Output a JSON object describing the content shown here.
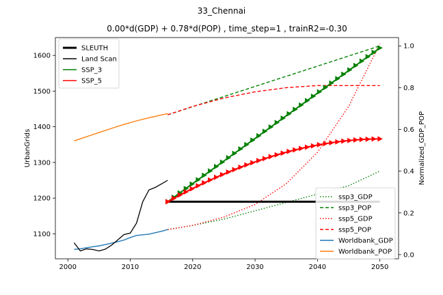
{
  "chart_data": {
    "type": "line",
    "suptitle": "33_Chennai",
    "title": "0.00*d(GDP) + 0.78*d(POP) , time_step=1 , trainR2=-0.30",
    "xlim": [
      1998,
      2053
    ],
    "x_ticks": [
      2000,
      2010,
      2020,
      2030,
      2040,
      2050
    ],
    "left_axis": {
      "label": "UrbanGrids",
      "ylim": [
        1030,
        1650
      ],
      "ticks": [
        1100,
        1200,
        1300,
        1400,
        1500,
        1600
      ]
    },
    "right_axis": {
      "label": "Normalized_GDP_POP",
      "ylim": [
        -0.02,
        1.04
      ],
      "ticks": [
        0.0,
        0.2,
        0.4,
        0.6,
        0.8,
        1.0
      ]
    },
    "left_legend": {
      "placement": "upper-left",
      "entries": [
        {
          "label": "SLEUTH",
          "color": "#000000",
          "style": "solid-thick"
        },
        {
          "label": "Land Scan",
          "color": "#000000",
          "style": "solid"
        },
        {
          "label": "SSP_3",
          "color": "#008000",
          "style": "solid"
        },
        {
          "label": "SSP_5",
          "color": "#ff0000",
          "style": "solid"
        }
      ]
    },
    "right_legend": {
      "placement": "lower-right",
      "entries": [
        {
          "label": "ssp3_GDP",
          "color": "#008000",
          "style": "dotted"
        },
        {
          "label": "ssp3_POP",
          "color": "#008000",
          "style": "dashed"
        },
        {
          "label": "ssp5_GDP",
          "color": "#ff0000",
          "style": "dotted"
        },
        {
          "label": "ssp5_POP",
          "color": "#ff0000",
          "style": "dashed"
        },
        {
          "label": "Worldbank_GDP",
          "color": "#1f77b4",
          "style": "solid"
        },
        {
          "label": "Worldbank_POP",
          "color": "#ff7f0e",
          "style": "solid"
        }
      ]
    },
    "series_left": [
      {
        "name": "SLEUTH",
        "color": "#000000",
        "width": 3,
        "x": [
          2016,
          2050
        ],
        "y": [
          1190,
          1190
        ]
      },
      {
        "name": "Land Scan",
        "color": "#000000",
        "width": 1.3,
        "x": [
          2001,
          2002,
          2003,
          2004,
          2005,
          2006,
          2007,
          2008,
          2009,
          2010,
          2011,
          2012,
          2013,
          2014,
          2015,
          2016
        ],
        "y": [
          1075,
          1052,
          1058,
          1056,
          1052,
          1057,
          1068,
          1083,
          1098,
          1102,
          1130,
          1190,
          1223,
          1230,
          1240,
          1250
        ]
      },
      {
        "name": "SSP_3",
        "color": "#008000",
        "width": 2,
        "marker": "triangle",
        "x_start": 2016,
        "x_end": 2050,
        "y_start": 1190,
        "y_end": 1621,
        "shape": "linear"
      },
      {
        "name": "SSP_5",
        "color": "#ff0000",
        "width": 2,
        "marker": "triangle",
        "x_start": 2016,
        "x_end": 2050,
        "y_start": 1190,
        "y_end": 1366,
        "shape": "concave"
      }
    ],
    "series_right": [
      {
        "name": "ssp3_GDP",
        "color": "#008000",
        "dash": "1.5,2.5",
        "x": [
          2016,
          2020,
          2025,
          2030,
          2035,
          2040,
          2045,
          2050
        ],
        "y": [
          0.12,
          0.14,
          0.17,
          0.21,
          0.25,
          0.29,
          0.33,
          0.4
        ]
      },
      {
        "name": "ssp3_POP",
        "color": "#008000",
        "dash": "5,3",
        "x": [
          2016,
          2050
        ],
        "y": [
          0.67,
          1.0
        ]
      },
      {
        "name": "ssp5_GDP",
        "color": "#ff0000",
        "dash": "1.5,2.5",
        "x": [
          2016,
          2020,
          2025,
          2030,
          2035,
          2040,
          2045,
          2050
        ],
        "y": [
          0.12,
          0.14,
          0.18,
          0.24,
          0.34,
          0.49,
          0.71,
          1.01
        ]
      },
      {
        "name": "ssp5_POP",
        "color": "#ff0000",
        "dash": "5,3",
        "x": [
          2016,
          2020,
          2025,
          2030,
          2035,
          2040,
          2045,
          2050
        ],
        "y": [
          0.67,
          0.71,
          0.75,
          0.78,
          0.8,
          0.81,
          0.81,
          0.81
        ]
      },
      {
        "name": "Worldbank_GDP",
        "color": "#1f77b4",
        "dash": "",
        "x": [
          2001,
          2002,
          2003,
          2004,
          2005,
          2006,
          2007,
          2008,
          2009,
          2010,
          2011,
          2012,
          2013,
          2014,
          2015,
          2016
        ],
        "y": [
          0.025,
          0.028,
          0.033,
          0.038,
          0.042,
          0.048,
          0.055,
          0.062,
          0.07,
          0.082,
          0.092,
          0.095,
          0.098,
          0.105,
          0.112,
          0.12
        ]
      },
      {
        "name": "Worldbank_POP",
        "color": "#ff7f0e",
        "dash": "",
        "x": [
          2001,
          2003,
          2005,
          2007,
          2009,
          2011,
          2013,
          2016
        ],
        "y": [
          0.545,
          0.565,
          0.585,
          0.605,
          0.624,
          0.641,
          0.656,
          0.676
        ]
      }
    ]
  }
}
